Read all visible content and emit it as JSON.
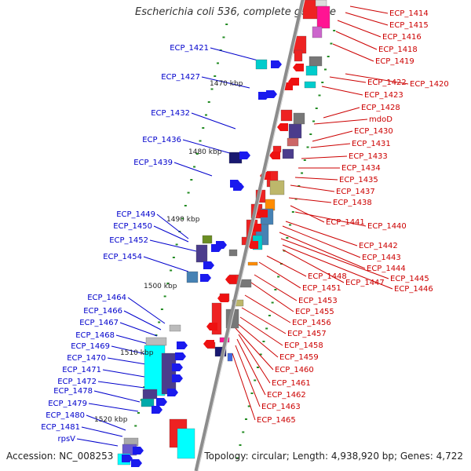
{
  "title": "Escherichia coli 536, complete genome",
  "footer": {
    "accession": "Accession: NC_008253",
    "topology": "Topology: circular; Length: 4,938,920 bp; Genes: 4,722"
  },
  "colors": {
    "backbone": "#8c8c8c",
    "left_label": "#0000cc",
    "right_label": "#cc0000",
    "tick": "#228b22"
  },
  "scale_labels": [
    "1470 kbp",
    "1480 kbp",
    "1490 kbp",
    "1500 kbp",
    "1510 kbp",
    "1520 kbp"
  ],
  "left_labels": [
    "ECP_1421",
    "ECP_1427",
    "ECP_1432",
    "ECP_1436",
    "ECP_1439",
    "ECP_1449",
    "ECP_1450",
    "ECP_1452",
    "ECP_1454",
    "ECP_1464",
    "ECP_1466",
    "ECP_1467",
    "ECP_1468",
    "ECP_1469",
    "ECP_1470",
    "ECP_1471",
    "ECP_1472",
    "ECP_1478",
    "ECP_1479",
    "ECP_1480",
    "ECP_1481",
    "rpsV"
  ],
  "right_labels": [
    "ECP_1414",
    "ECP_1415",
    "ECP_1416",
    "ECP_1418",
    "ECP_1419",
    "ECP_1420",
    "ECP_1422",
    "ECP_1423",
    "ECP_1428",
    "mdoD",
    "ECP_1430",
    "ECP_1431",
    "ECP_1433",
    "ECP_1434",
    "ECP_1435",
    "ECP_1437",
    "ECP_1438",
    "ECP_1441",
    "ECP_1440",
    "ECP_1442",
    "ECP_1443",
    "ECP_1444",
    "ECP_1445",
    "ECP_1446",
    "ECP_1448",
    "ECP_1447",
    "ECP_1451",
    "ECP_1453",
    "ECP_1455",
    "ECP_1456",
    "ECP_1457",
    "ECP_1458",
    "ECP_1459",
    "ECP_1460",
    "ECP_1461",
    "ECP_1462",
    "ECP_1463",
    "ECP_1465"
  ]
}
